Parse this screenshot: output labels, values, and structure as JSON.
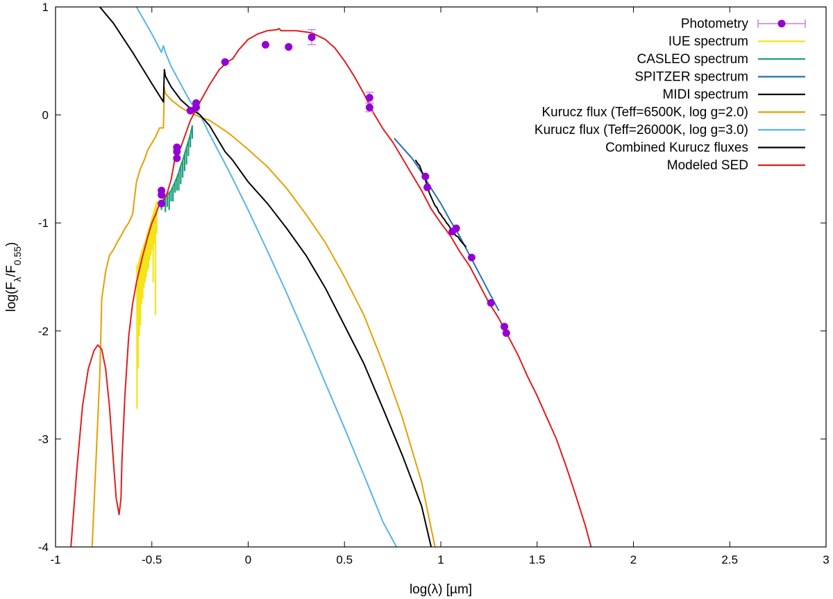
{
  "chart_data": {
    "type": "line",
    "xlabel": "log(λ) [µm]",
    "ylabel": "log(F_λ/F_0.55)",
    "ylabel_parts": {
      "pre": "log(F",
      "sub1": "λ",
      "mid": "/F",
      "sub2": "0.55",
      "post": ")"
    },
    "xlim": [
      -1,
      3
    ],
    "ylim": [
      -4,
      1
    ],
    "xticks": [
      -1,
      -0.5,
      0,
      0.5,
      1,
      1.5,
      2,
      2.5,
      3
    ],
    "xtick_labels": [
      "-1",
      "-0.5",
      "0",
      "0.5",
      "1",
      "1.5",
      "2",
      "2.5",
      "3"
    ],
    "yticks": [
      -4,
      -3,
      -2,
      -1,
      0,
      1
    ],
    "ytick_labels": [
      "-4",
      "-3",
      "-2",
      "-1",
      "0",
      "1"
    ],
    "grid": false,
    "legend_position": "top-right",
    "series": [
      {
        "name": "Photometry",
        "kind": "points",
        "color": "#9400d3",
        "points": [
          {
            "x": -0.45,
            "y": -0.7
          },
          {
            "x": -0.45,
            "y": -0.74
          },
          {
            "x": -0.45,
            "y": -0.82
          },
          {
            "x": -0.37,
            "y": -0.3
          },
          {
            "x": -0.37,
            "y": -0.34
          },
          {
            "x": -0.37,
            "y": -0.4
          },
          {
            "x": -0.3,
            "y": 0.04
          },
          {
            "x": -0.27,
            "y": 0.07
          },
          {
            "x": -0.27,
            "y": 0.11
          },
          {
            "x": -0.12,
            "y": 0.49
          },
          {
            "x": 0.09,
            "y": 0.65
          },
          {
            "x": 0.21,
            "y": 0.63
          },
          {
            "x": 0.33,
            "y": 0.72,
            "err": 0.07
          },
          {
            "x": 0.63,
            "y": 0.16,
            "err": 0.05
          },
          {
            "x": 0.63,
            "y": 0.07,
            "err": 0.04
          },
          {
            "x": 0.92,
            "y": -0.57
          },
          {
            "x": 0.93,
            "y": -0.67
          },
          {
            "x": 1.06,
            "y": -1.08
          },
          {
            "x": 1.08,
            "y": -1.05
          },
          {
            "x": 1.16,
            "y": -1.32
          },
          {
            "x": 1.26,
            "y": -1.74
          },
          {
            "x": 1.33,
            "y": -1.96
          },
          {
            "x": 1.34,
            "y": -2.02
          }
        ]
      },
      {
        "name": "IUE spectrum",
        "kind": "spike",
        "color": "#f2e51a",
        "x": [
          -0.577,
          -0.571,
          -0.565,
          -0.559,
          -0.553,
          -0.547,
          -0.541,
          -0.535,
          -0.529,
          -0.523,
          -0.517,
          -0.511,
          -0.505,
          -0.499,
          -0.493,
          -0.487,
          -0.481,
          -0.475
        ],
        "top": [
          -1.4,
          -1.38,
          -1.35,
          -1.3,
          -1.27,
          -1.24,
          -1.2,
          -1.18,
          -1.14,
          -1.1,
          -1.06,
          -1.03,
          -1.0,
          -0.95,
          -0.92,
          -0.88,
          -0.84,
          -0.8
        ],
        "bottom": [
          -2.72,
          -2.35,
          -2.05,
          -1.95,
          -1.75,
          -1.7,
          -1.6,
          -1.55,
          -1.5,
          -1.45,
          -1.42,
          -1.35,
          -1.3,
          -1.25,
          -1.55,
          -1.2,
          -1.85,
          -1.1
        ]
      },
      {
        "name": "CASLEO spectrum",
        "kind": "spike",
        "color": "#1a9e77",
        "x": [
          -0.45,
          -0.44,
          -0.43,
          -0.42,
          -0.41,
          -0.4,
          -0.39,
          -0.38,
          -0.37,
          -0.36,
          -0.35,
          -0.34,
          -0.33,
          -0.32,
          -0.31,
          -0.3,
          -0.29
        ],
        "top": [
          -0.8,
          -0.78,
          -0.76,
          -0.74,
          -0.72,
          -0.7,
          -0.66,
          -0.62,
          -0.58,
          -0.53,
          -0.47,
          -0.42,
          -0.36,
          -0.3,
          -0.24,
          -0.18,
          -0.1
        ],
        "bottom": [
          -0.88,
          -0.85,
          -0.9,
          -0.85,
          -0.88,
          -0.8,
          -0.8,
          -0.72,
          -0.7,
          -0.7,
          -0.64,
          -0.58,
          -0.52,
          -0.46,
          -0.38,
          -0.3,
          -0.22
        ]
      },
      {
        "name": "SPITZER spectrum",
        "kind": "line",
        "color": "#1f6fb5",
        "x": [
          0.76,
          0.8,
          0.85,
          0.9,
          0.95,
          1.0,
          1.05,
          1.1,
          1.15,
          1.2,
          1.25,
          1.3
        ],
        "y": [
          -0.22,
          -0.3,
          -0.4,
          -0.53,
          -0.68,
          -0.82,
          -0.98,
          -1.13,
          -1.3,
          -1.47,
          -1.64,
          -1.81
        ]
      },
      {
        "name": "MIDI spectrum",
        "kind": "line",
        "color": "#000000",
        "x": [
          0.87,
          0.88,
          0.89,
          0.9,
          0.91,
          0.92,
          0.93,
          0.94,
          0.95,
          0.96,
          0.97,
          0.98,
          0.99,
          1.0,
          1.01,
          1.02,
          1.03,
          1.04,
          1.05,
          1.06,
          1.07,
          1.08,
          1.09,
          1.1,
          1.11,
          1.12,
          1.13
        ],
        "y": [
          -0.42,
          -0.45,
          -0.47,
          -0.52,
          -0.56,
          -0.6,
          -0.66,
          -0.72,
          -0.76,
          -0.8,
          -0.84,
          -0.86,
          -0.9,
          -0.92,
          -0.95,
          -0.97,
          -1.0,
          -1.02,
          -1.05,
          -1.08,
          -1.1,
          -1.12,
          -1.13,
          -1.16,
          -1.18,
          -1.2,
          -1.22
        ]
      },
      {
        "name": "Kurucz flux (Teff=6500K,  log g=2.0)",
        "kind": "line",
        "color": "#e69f00",
        "x": [
          -0.81,
          -0.805,
          -0.8,
          -0.79,
          -0.78,
          -0.77,
          -0.76,
          -0.74,
          -0.72,
          -0.7,
          -0.68,
          -0.66,
          -0.64,
          -0.62,
          -0.6,
          -0.58,
          -0.56,
          -0.54,
          -0.52,
          -0.5,
          -0.48,
          -0.46,
          -0.44,
          -0.435,
          -0.43,
          -0.4,
          -0.35,
          -0.3,
          -0.25,
          -0.2,
          -0.1,
          0.0,
          0.1,
          0.2,
          0.3,
          0.4,
          0.5,
          0.6,
          0.7,
          0.8,
          0.9,
          0.97
        ],
        "y": [
          -4.0,
          -3.8,
          -3.6,
          -3.2,
          -2.8,
          -2.4,
          -1.7,
          -1.45,
          -1.3,
          -1.25,
          -1.18,
          -1.12,
          -1.05,
          -1.0,
          -0.92,
          -0.62,
          -0.5,
          -0.42,
          -0.32,
          -0.26,
          -0.2,
          -0.12,
          -0.12,
          0.25,
          0.2,
          0.14,
          0.07,
          0.02,
          -0.02,
          -0.05,
          -0.17,
          -0.32,
          -0.48,
          -0.68,
          -0.92,
          -1.18,
          -1.5,
          -1.85,
          -2.3,
          -2.8,
          -3.4,
          -4.0
        ]
      },
      {
        "name": "Kurucz flux (Teff=26000K,  log g=3.0)",
        "kind": "line",
        "color": "#56b4e9",
        "x": [
          -0.58,
          -0.5,
          -0.45,
          -0.44,
          -0.43,
          -0.4,
          -0.3,
          -0.25,
          -0.2,
          -0.1,
          0.0,
          0.1,
          0.2,
          0.3,
          0.4,
          0.5,
          0.6,
          0.7,
          0.77
        ],
        "y": [
          1.0,
          0.75,
          0.58,
          0.64,
          0.58,
          0.45,
          0.12,
          0.0,
          -0.18,
          -0.52,
          -0.88,
          -1.26,
          -1.65,
          -2.06,
          -2.48,
          -2.9,
          -3.33,
          -3.77,
          -4.0
        ]
      },
      {
        "name": "Combined Kurucz fluxes",
        "kind": "line",
        "color": "#000000",
        "x": [
          -0.77,
          -0.7,
          -0.6,
          -0.5,
          -0.44,
          -0.435,
          -0.43,
          -0.4,
          -0.35,
          -0.3,
          -0.25,
          -0.2,
          -0.12,
          -0.1,
          -0.08,
          0.0,
          0.1,
          0.2,
          0.3,
          0.4,
          0.5,
          0.6,
          0.7,
          0.8,
          0.9,
          0.95
        ],
        "y": [
          1.0,
          0.85,
          0.58,
          0.29,
          0.12,
          0.42,
          0.36,
          0.26,
          0.14,
          0.06,
          0.0,
          -0.1,
          -0.34,
          -0.38,
          -0.42,
          -0.62,
          -0.82,
          -1.05,
          -1.3,
          -1.6,
          -1.95,
          -2.3,
          -2.72,
          -3.15,
          -3.62,
          -4.0
        ]
      },
      {
        "name": "Modeled SED",
        "kind": "line",
        "color": "#e41a1c",
        "x": [
          -0.92,
          -0.89,
          -0.86,
          -0.83,
          -0.8,
          -0.78,
          -0.76,
          -0.74,
          -0.72,
          -0.7,
          -0.685,
          -0.67,
          -0.66,
          -0.655,
          -0.64,
          -0.62,
          -0.6,
          -0.58,
          -0.55,
          -0.52,
          -0.5,
          -0.48,
          -0.46,
          -0.44,
          -0.42,
          -0.4,
          -0.38,
          -0.35,
          -0.3,
          -0.25,
          -0.2,
          -0.15,
          -0.12,
          -0.1,
          -0.08,
          -0.05,
          0.0,
          0.05,
          0.1,
          0.15,
          0.16,
          0.17,
          0.25,
          0.33,
          0.4,
          0.45,
          0.5,
          0.55,
          0.6,
          0.65,
          0.7,
          0.75,
          0.8,
          0.85,
          0.9,
          0.95,
          1.0,
          1.05,
          1.1,
          1.15,
          1.2,
          1.25,
          1.3,
          1.35,
          1.4,
          1.45,
          1.5,
          1.55,
          1.6,
          1.65,
          1.7,
          1.75,
          1.78
        ],
        "y": [
          -4.0,
          -3.3,
          -2.7,
          -2.35,
          -2.18,
          -2.13,
          -2.17,
          -2.35,
          -2.7,
          -3.2,
          -3.55,
          -3.7,
          -3.55,
          -3.2,
          -2.6,
          -2.05,
          -1.75,
          -1.55,
          -1.32,
          -1.12,
          -1.0,
          -0.92,
          -0.82,
          -0.8,
          -0.72,
          -0.6,
          -0.4,
          -0.3,
          -0.05,
          0.12,
          0.28,
          0.42,
          0.47,
          0.5,
          0.52,
          0.6,
          0.7,
          0.75,
          0.78,
          0.79,
          0.8,
          0.78,
          0.78,
          0.76,
          0.7,
          0.62,
          0.5,
          0.36,
          0.2,
          0.02,
          -0.13,
          -0.25,
          -0.4,
          -0.55,
          -0.7,
          -0.87,
          -1.0,
          -1.12,
          -1.27,
          -1.4,
          -1.57,
          -1.74,
          -1.88,
          -2.05,
          -2.22,
          -2.42,
          -2.6,
          -2.8,
          -3.0,
          -3.25,
          -3.52,
          -3.8,
          -4.0
        ]
      }
    ]
  }
}
